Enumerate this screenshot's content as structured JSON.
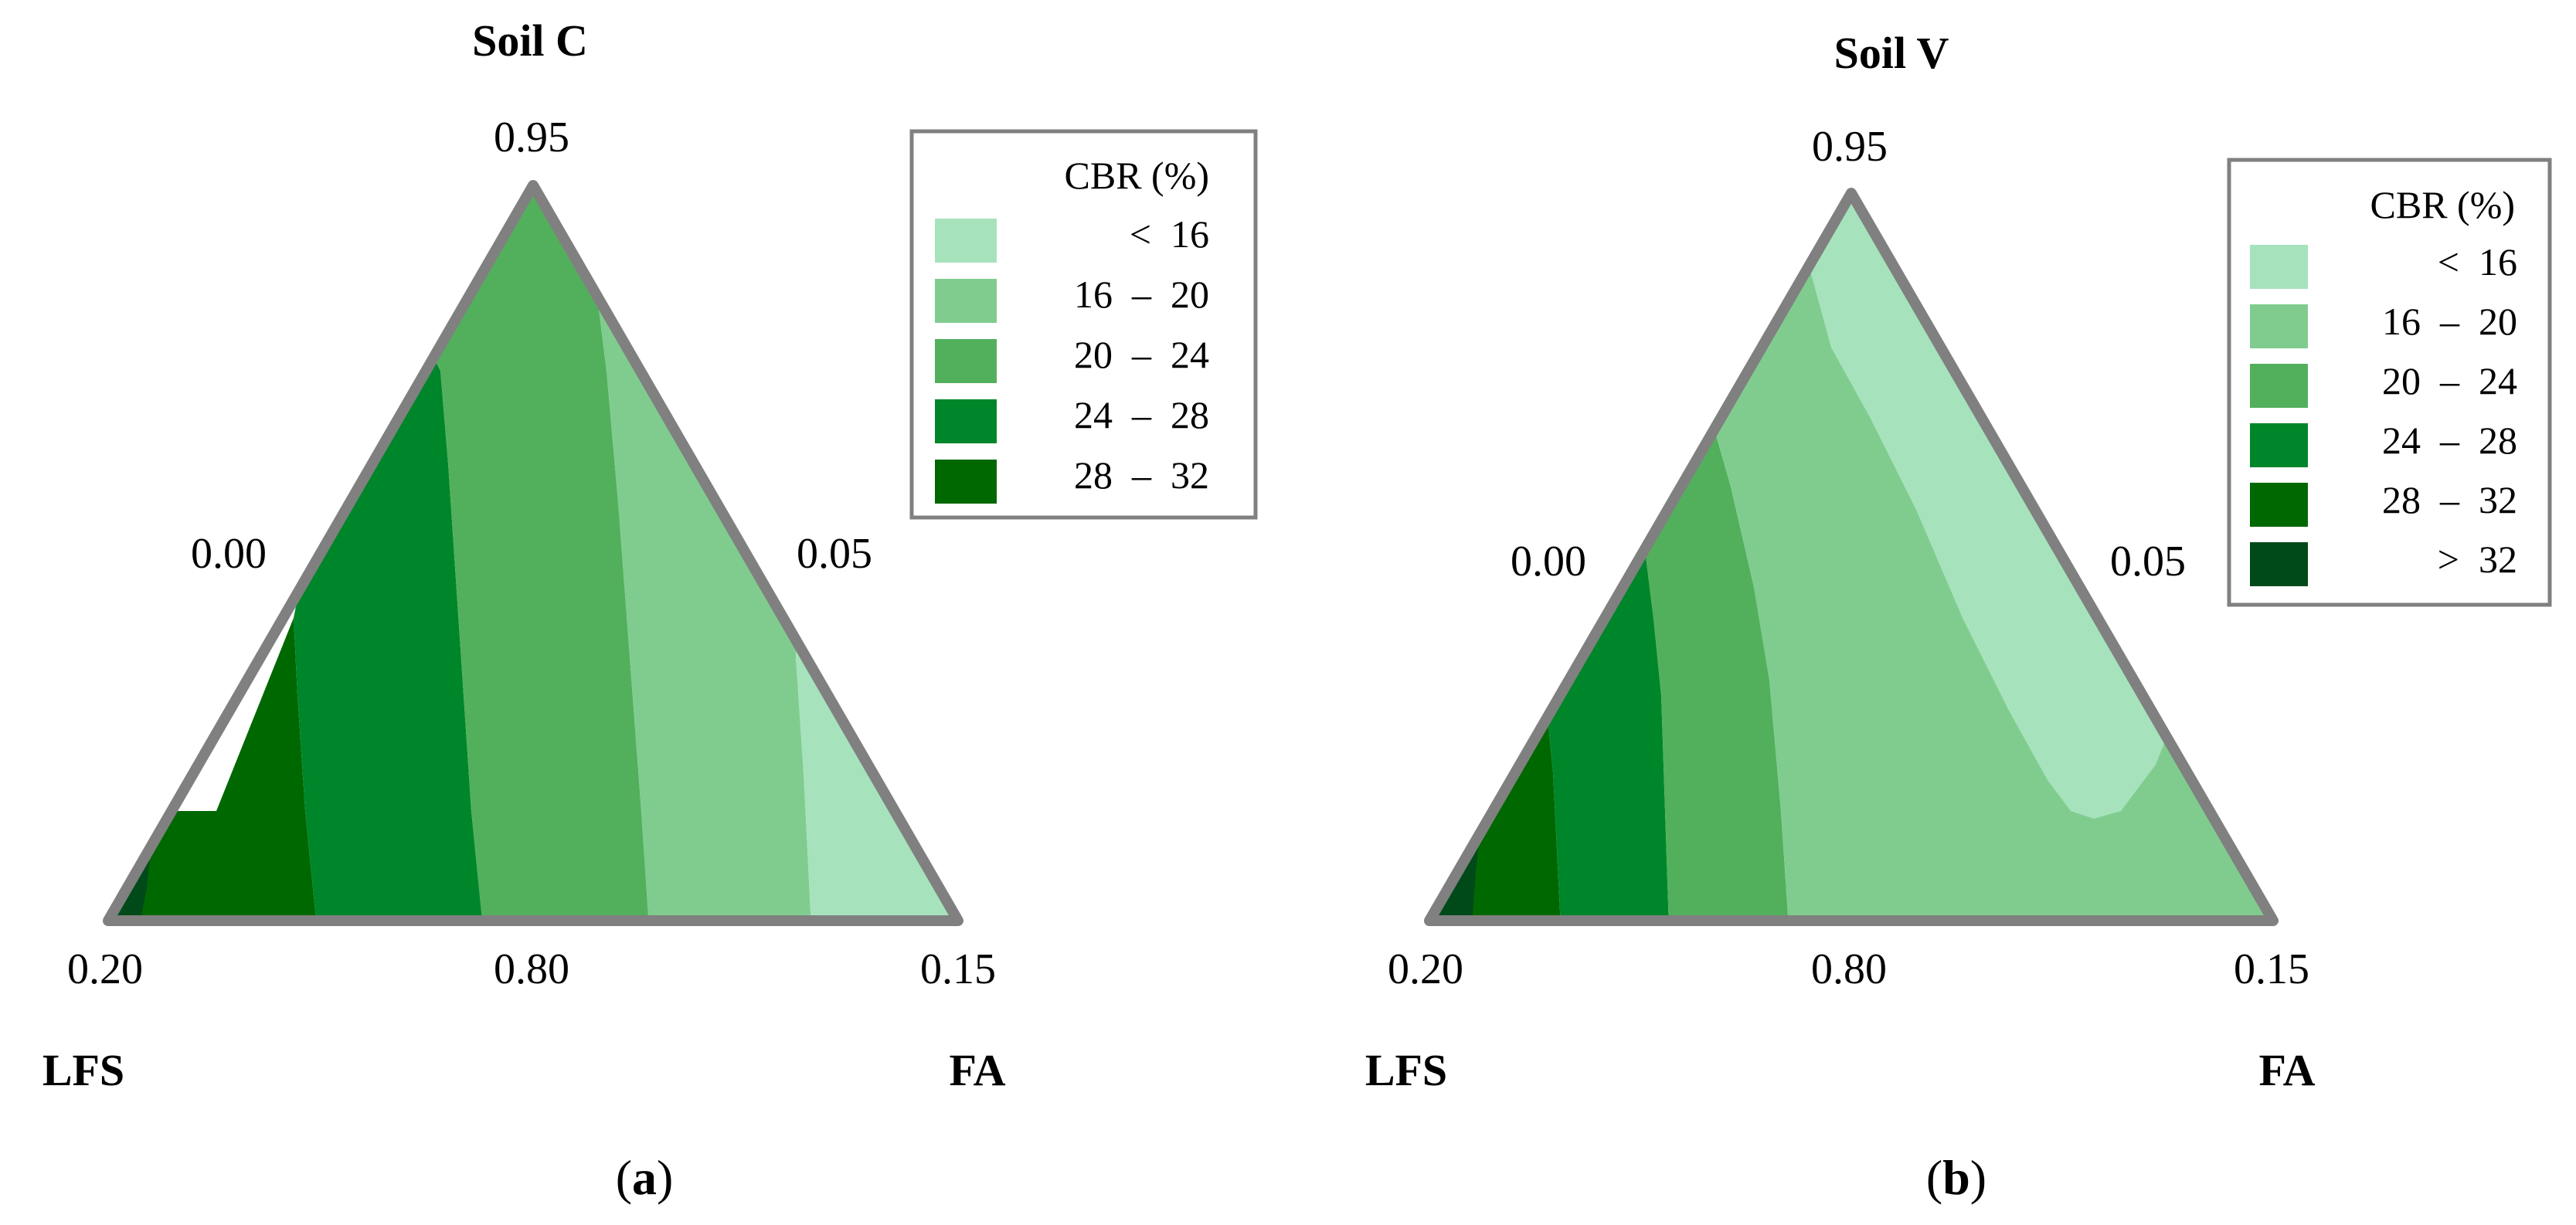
{
  "chart_data": [
    {
      "type": "ternary-contour",
      "panel_label": "a",
      "title": "Soil C",
      "axes": {
        "top_vertex_value": "0.95",
        "left_vertex_value": "0.20",
        "right_vertex_value": "0.15",
        "bottom_mid_value": "0.80",
        "left_edge_value": "0.00",
        "right_edge_value": "0.05",
        "left_component": "LFS",
        "right_component": "FA"
      },
      "legend": {
        "title": "CBR (%)",
        "entries": [
          {
            "label": "<  16",
            "color": "#a6e3bc"
          },
          {
            "label": "16  –  20",
            "color": "#80cc8f"
          },
          {
            "label": "20  –  24",
            "color": "#52b05c"
          },
          {
            "label": "24  –  28",
            "color": "#00862a"
          },
          {
            "label": "28  –  32",
            "color": "#006800"
          }
        ]
      },
      "contour_bands": [
        {
          "range": "> 32",
          "color": "#004a1a",
          "from": 0.0,
          "to": 0.05
        },
        {
          "range": "28 – 32",
          "color": "#006800",
          "from": 0.05,
          "to": 0.23
        },
        {
          "range": "24 – 28",
          "color": "#00862a",
          "from": 0.23,
          "to": 0.43
        },
        {
          "range": "20 – 24",
          "color": "#52b05c",
          "from": 0.43,
          "to": 0.63
        },
        {
          "range": "16 – 20",
          "color": "#80cc8f",
          "from": 0.63,
          "to": 0.83
        },
        {
          "range": "< 16",
          "color": "#a6e3bc",
          "from": 0.83,
          "to": 1.0
        }
      ]
    },
    {
      "type": "ternary-contour",
      "panel_label": "b",
      "title": "Soil V",
      "axes": {
        "top_vertex_value": "0.95",
        "left_vertex_value": "0.20",
        "right_vertex_value": "0.15",
        "bottom_mid_value": "0.80",
        "left_edge_value": "0.00",
        "right_edge_value": "0.05",
        "left_component": "LFS",
        "right_component": "FA"
      },
      "legend": {
        "title": "CBR (%)",
        "entries": [
          {
            "label": "<  16",
            "color": "#a6e3bc"
          },
          {
            "label": "16  –  20",
            "color": "#80cc8f"
          },
          {
            "label": "20  –  24",
            "color": "#52b05c"
          },
          {
            "label": "24  –  28",
            "color": "#00862a"
          },
          {
            "label": "28  –  32",
            "color": "#006800"
          },
          {
            "label": ">  32",
            "color": "#004a1a"
          }
        ]
      },
      "contour_bands": [
        {
          "range": "> 32",
          "color": "#004a1a",
          "from": 0.0,
          "to": 0.05
        },
        {
          "range": "28 – 32",
          "color": "#006800",
          "from": 0.05,
          "to": 0.15
        },
        {
          "range": "24 – 28",
          "color": "#00862a",
          "from": 0.15,
          "to": 0.27
        },
        {
          "range": "20 – 24",
          "color": "#52b05c",
          "from": 0.27,
          "to": 0.43
        },
        {
          "range": "16 – 20",
          "color": "#80cc8f",
          "from": 0.43,
          "to": 1.0
        },
        {
          "range": "< 16",
          "color": "#a6e3bc",
          "from": 0.0,
          "to": 0.0
        }
      ]
    }
  ]
}
